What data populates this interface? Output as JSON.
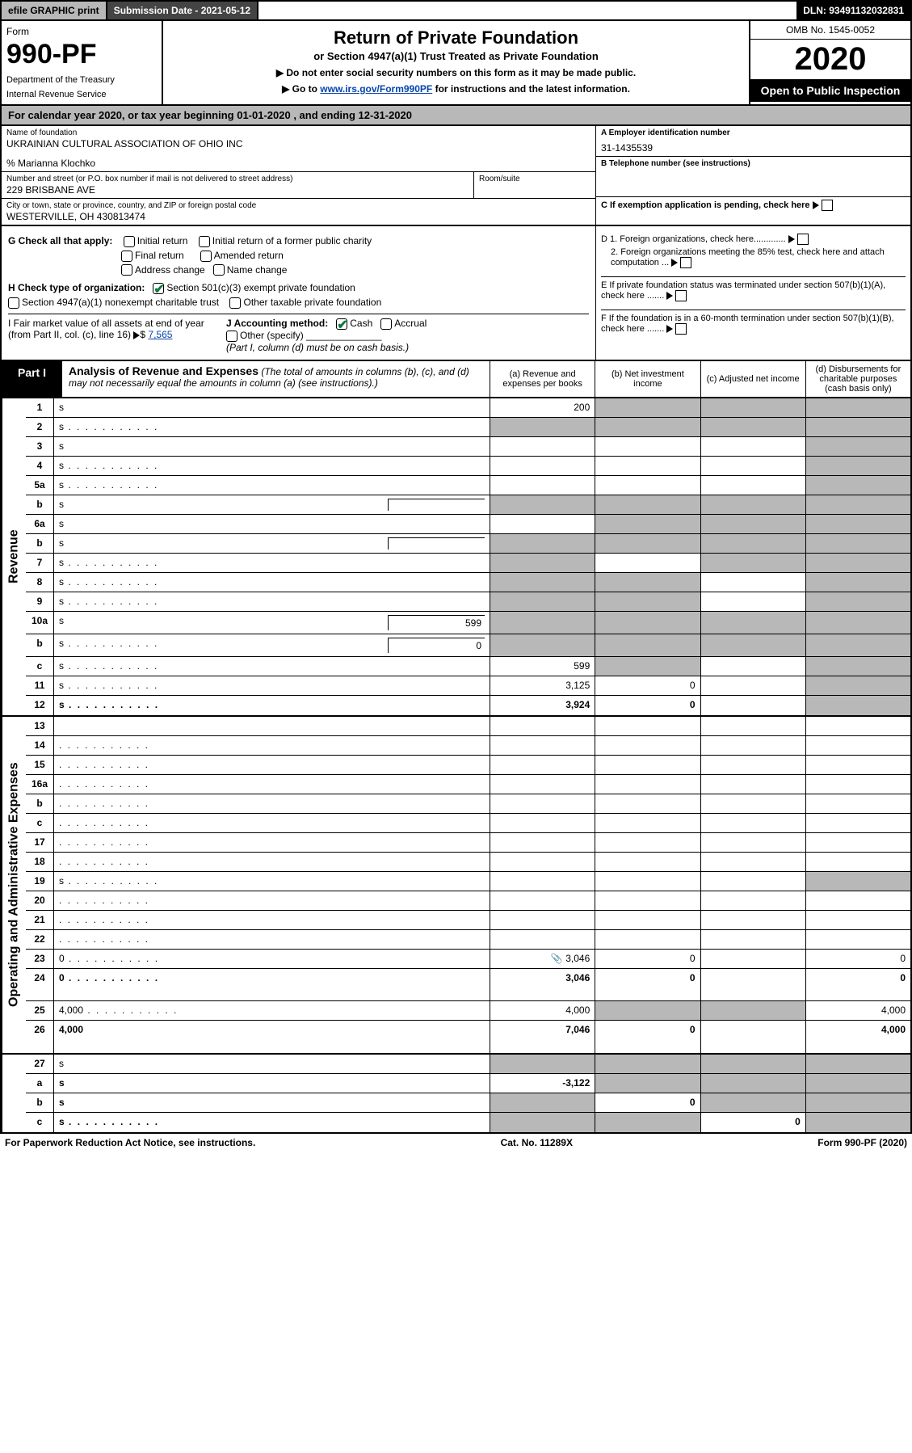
{
  "topbar": {
    "efile": "efile GRAPHIC print",
    "subdate_label": "Submission Date - 2021-05-12",
    "dln": "DLN: 93491132032831"
  },
  "header": {
    "form_label": "Form",
    "form_num": "990-PF",
    "dept1": "Department of the Treasury",
    "dept2": "Internal Revenue Service",
    "title": "Return of Private Foundation",
    "subtitle": "or Section 4947(a)(1) Trust Treated as Private Foundation",
    "note1": "▶ Do not enter social security numbers on this form as it may be made public.",
    "note2_pre": "▶ Go to ",
    "note2_link": "www.irs.gov/Form990PF",
    "note2_post": " for instructions and the latest information.",
    "omb": "OMB No. 1545-0052",
    "year": "2020",
    "open": "Open to Public Inspection"
  },
  "calyear": "For calendar year 2020, or tax year beginning 01-01-2020              , and ending 12-31-2020",
  "info": {
    "name_lbl": "Name of foundation",
    "name_val": "UKRAINIAN CULTURAL ASSOCIATION OF OHIO INC",
    "co": "% Marianna Klochko",
    "addr_lbl": "Number and street (or P.O. box number if mail is not delivered to street address)",
    "addr_val": "229 BRISBANE AVE",
    "room_lbl": "Room/suite",
    "city_lbl": "City or town, state or province, country, and ZIP or foreign postal code",
    "city_val": "WESTERVILLE, OH  430813474",
    "ein_lbl": "A Employer identification number",
    "ein_val": "31-1435539",
    "tel_lbl": "B Telephone number (see instructions)",
    "c_lbl": "C If exemption application is pending, check here",
    "d1": "D 1. Foreign organizations, check here.............",
    "d2": "2. Foreign organizations meeting the 85% test, check here and attach computation ...",
    "e_lbl": "E  If private foundation status was terminated under section 507(b)(1)(A), check here .......",
    "f_lbl": "F  If the foundation is in a 60-month termination under section 507(b)(1)(B), check here .......",
    "g_lbl": "G Check all that apply:",
    "g_initial": "Initial return",
    "g_initial_former": "Initial return of a former public charity",
    "g_final": "Final return",
    "g_amended": "Amended return",
    "g_address": "Address change",
    "g_name": "Name change",
    "h_lbl": "H Check type of organization:",
    "h_501c3": "Section 501(c)(3) exempt private foundation",
    "h_4947": "Section 4947(a)(1) nonexempt charitable trust",
    "h_other_tax": "Other taxable private foundation",
    "i_lbl": "I Fair market value of all assets at end of year (from Part II, col. (c), line 16)",
    "i_val": "7,565",
    "j_lbl": "J Accounting method:",
    "j_cash": "Cash",
    "j_accrual": "Accrual",
    "j_other": "Other (specify)",
    "j_note": "(Part I, column (d) must be on cash basis.)"
  },
  "part1": {
    "label": "Part I",
    "title": "Analysis of Revenue and Expenses",
    "title_note": "(The total of amounts in columns (b), (c), and (d) may not necessarily equal the amounts in column (a) (see instructions).)",
    "col_a": "(a)   Revenue and expenses per books",
    "col_b": "(b)   Net investment income",
    "col_c": "(c)   Adjusted net income",
    "col_d": "(d)  Disbursements for charitable purposes (cash basis only)"
  },
  "sides": {
    "revenue": "Revenue",
    "expenses": "Operating and Administrative Expenses"
  },
  "rows": [
    {
      "n": "1",
      "d": "s",
      "a": "200",
      "b": "s",
      "c": "s"
    },
    {
      "n": "2",
      "d": "s",
      "a": "s",
      "b": "s",
      "c": "s",
      "dots": true
    },
    {
      "n": "3",
      "d": "s",
      "a": "",
      "b": "",
      "c": ""
    },
    {
      "n": "4",
      "d": "s",
      "a": "",
      "b": "",
      "c": "",
      "dots": true
    },
    {
      "n": "5a",
      "d": "s",
      "a": "",
      "b": "",
      "c": "",
      "dots": true
    },
    {
      "n": "b",
      "d": "s",
      "a": "s",
      "b": "s",
      "c": "s",
      "inline": ""
    },
    {
      "n": "6a",
      "d": "s",
      "a": "",
      "b": "s",
      "c": "s"
    },
    {
      "n": "b",
      "d": "s",
      "a": "s",
      "b": "s",
      "c": "s",
      "inline": ""
    },
    {
      "n": "7",
      "d": "s",
      "a": "s",
      "b": "",
      "c": "s",
      "dots": true
    },
    {
      "n": "8",
      "d": "s",
      "a": "s",
      "b": "s",
      "c": "",
      "dots": true
    },
    {
      "n": "9",
      "d": "s",
      "a": "s",
      "b": "s",
      "c": "",
      "dots": true
    },
    {
      "n": "10a",
      "d": "s",
      "a": "s",
      "b": "s",
      "c": "s",
      "inline": "599"
    },
    {
      "n": "b",
      "d": "s",
      "a": "s",
      "b": "s",
      "c": "s",
      "inline": "0",
      "dots": true
    },
    {
      "n": "c",
      "d": "s",
      "a": "599",
      "b": "s",
      "c": "",
      "dots": true
    },
    {
      "n": "11",
      "d": "s",
      "a": "3,125",
      "b": "0",
      "c": "",
      "dots": true
    },
    {
      "n": "12",
      "d": "s",
      "a": "3,924",
      "b": "0",
      "c": "",
      "bold": true,
      "dots": true
    }
  ],
  "rows2": [
    {
      "n": "13",
      "d": "",
      "a": "",
      "b": "",
      "c": ""
    },
    {
      "n": "14",
      "d": "",
      "a": "",
      "b": "",
      "c": "",
      "dots": true
    },
    {
      "n": "15",
      "d": "",
      "a": "",
      "b": "",
      "c": "",
      "dots": true
    },
    {
      "n": "16a",
      "d": "",
      "a": "",
      "b": "",
      "c": "",
      "dots": true
    },
    {
      "n": "b",
      "d": "",
      "a": "",
      "b": "",
      "c": "",
      "dots": true
    },
    {
      "n": "c",
      "d": "",
      "a": "",
      "b": "",
      "c": "",
      "dots": true
    },
    {
      "n": "17",
      "d": "",
      "a": "",
      "b": "",
      "c": "",
      "dots": true
    },
    {
      "n": "18",
      "d": "",
      "a": "",
      "b": "",
      "c": "",
      "dots": true
    },
    {
      "n": "19",
      "d": "s",
      "a": "",
      "b": "",
      "c": "",
      "dots": true
    },
    {
      "n": "20",
      "d": "",
      "a": "",
      "b": "",
      "c": "",
      "dots": true
    },
    {
      "n": "21",
      "d": "",
      "a": "",
      "b": "",
      "c": "",
      "dots": true
    },
    {
      "n": "22",
      "d": "",
      "a": "",
      "b": "",
      "c": "",
      "dots": true
    },
    {
      "n": "23",
      "d": "0",
      "a": "3,046",
      "b": "0",
      "c": "",
      "dots": true,
      "attach": true
    },
    {
      "n": "24",
      "d": "0",
      "a": "3,046",
      "b": "0",
      "c": "",
      "bold": true,
      "dots": true,
      "tall": true
    },
    {
      "n": "25",
      "d": "4,000",
      "a": "4,000",
      "b": "s",
      "c": "s",
      "dots": true
    },
    {
      "n": "26",
      "d": "4,000",
      "a": "7,046",
      "b": "0",
      "c": "",
      "bold": true,
      "tall": true
    }
  ],
  "rows3": [
    {
      "n": "27",
      "d": "s",
      "a": "s",
      "b": "s",
      "c": "s"
    },
    {
      "n": "a",
      "d": "s",
      "a": "-3,122",
      "b": "s",
      "c": "s",
      "bold": true
    },
    {
      "n": "b",
      "d": "s",
      "a": "s",
      "b": "0",
      "c": "s",
      "bold": true
    },
    {
      "n": "c",
      "d": "s",
      "a": "s",
      "b": "s",
      "c": "0",
      "bold": true,
      "dots": true
    }
  ],
  "footer": {
    "left": "For Paperwork Reduction Act Notice, see instructions.",
    "mid": "Cat. No. 11289X",
    "right": "Form 990-PF (2020)"
  },
  "colors": {
    "shaded": "#b8b8b8",
    "black": "#000000",
    "link": "#0645ad",
    "check": "#0a7a3a"
  }
}
